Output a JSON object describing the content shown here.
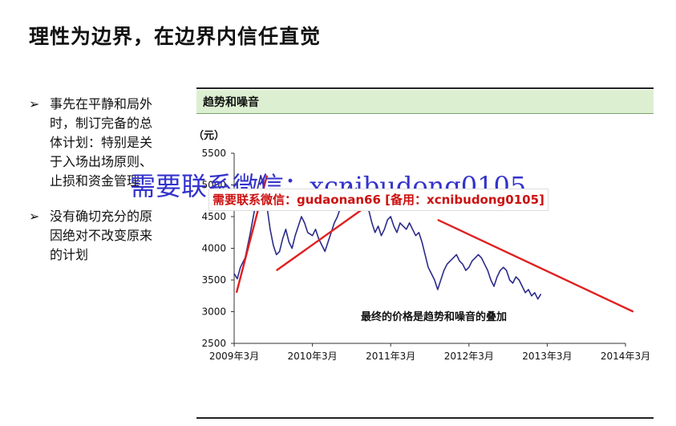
{
  "page": {
    "title": "理性为边界，在边界内信任直觉",
    "bullets": [
      {
        "marker": "➢",
        "text": "事先在平静和局外时，制订完备的总体计划：特别是关于入场出场原则、止损和资金管理"
      },
      {
        "marker": "➢",
        "text": "没有确切充分的原因绝对不改变原来的计划"
      }
    ],
    "panel_title": "趋势和噪音"
  },
  "overlay": {
    "big_text": "需要联系微信：xcnibudong0105",
    "red_text": "需要联系微信：gudaonan66 [备用：xcnibudong0105]"
  },
  "colors": {
    "price_line": "#2b2b8c",
    "trend_line": "#e02020",
    "header_bg": "#dcefd1"
  },
  "chart_data": {
    "type": "line",
    "unit_label": "（元）",
    "annotation": "最终的价格是趋势和噪音的叠加",
    "categories": [
      "2009年3月",
      "2010年3月",
      "2011年3月",
      "2012年3月",
      "2013年3月",
      "2014年3月"
    ],
    "ylim": [
      2500,
      5500
    ],
    "yticks": [
      2500,
      3000,
      3500,
      4000,
      4500,
      5000,
      5500
    ],
    "grid": false,
    "series": [
      {
        "values": [
          [
            0.0,
            3600
          ],
          [
            0.04,
            3520
          ],
          [
            0.08,
            3700
          ],
          [
            0.14,
            3850
          ],
          [
            0.2,
            4200
          ],
          [
            0.26,
            4600
          ],
          [
            0.3,
            4950
          ],
          [
            0.34,
            5150
          ],
          [
            0.38,
            4950
          ],
          [
            0.42,
            4650
          ],
          [
            0.46,
            4300
          ],
          [
            0.5,
            4050
          ],
          [
            0.54,
            3900
          ],
          [
            0.58,
            3950
          ],
          [
            0.62,
            4150
          ],
          [
            0.66,
            4300
          ],
          [
            0.7,
            4100
          ],
          [
            0.74,
            4000
          ],
          [
            0.78,
            4200
          ],
          [
            0.82,
            4350
          ],
          [
            0.86,
            4500
          ],
          [
            0.9,
            4400
          ],
          [
            0.94,
            4250
          ],
          [
            1.0,
            4200
          ],
          [
            1.04,
            4300
          ],
          [
            1.08,
            4150
          ],
          [
            1.12,
            4050
          ],
          [
            1.16,
            3950
          ],
          [
            1.2,
            4100
          ],
          [
            1.24,
            4250
          ],
          [
            1.28,
            4400
          ],
          [
            1.32,
            4500
          ],
          [
            1.36,
            4650
          ],
          [
            1.4,
            4750
          ],
          [
            1.44,
            4900
          ],
          [
            1.48,
            5000
          ],
          [
            1.52,
            4850
          ],
          [
            1.56,
            4950
          ],
          [
            1.6,
            4800
          ],
          [
            1.64,
            4700
          ],
          [
            1.68,
            4850
          ],
          [
            1.72,
            4600
          ],
          [
            1.76,
            4400
          ],
          [
            1.8,
            4250
          ],
          [
            1.84,
            4350
          ],
          [
            1.88,
            4200
          ],
          [
            1.92,
            4300
          ],
          [
            1.96,
            4450
          ],
          [
            2.0,
            4500
          ],
          [
            2.04,
            4350
          ],
          [
            2.08,
            4250
          ],
          [
            2.12,
            4400
          ],
          [
            2.16,
            4350
          ],
          [
            2.2,
            4300
          ],
          [
            2.24,
            4400
          ],
          [
            2.28,
            4300
          ],
          [
            2.32,
            4200
          ],
          [
            2.36,
            4250
          ],
          [
            2.4,
            4100
          ],
          [
            2.44,
            3900
          ],
          [
            2.48,
            3700
          ],
          [
            2.52,
            3600
          ],
          [
            2.56,
            3500
          ],
          [
            2.6,
            3350
          ],
          [
            2.64,
            3500
          ],
          [
            2.68,
            3650
          ],
          [
            2.72,
            3750
          ],
          [
            2.76,
            3800
          ],
          [
            2.8,
            3850
          ],
          [
            2.84,
            3900
          ],
          [
            2.88,
            3800
          ],
          [
            2.92,
            3750
          ],
          [
            2.96,
            3650
          ],
          [
            3.0,
            3700
          ],
          [
            3.04,
            3800
          ],
          [
            3.08,
            3850
          ],
          [
            3.12,
            3900
          ],
          [
            3.16,
            3850
          ],
          [
            3.2,
            3750
          ],
          [
            3.24,
            3650
          ],
          [
            3.28,
            3500
          ],
          [
            3.32,
            3400
          ],
          [
            3.36,
            3550
          ],
          [
            3.4,
            3650
          ],
          [
            3.44,
            3700
          ],
          [
            3.48,
            3650
          ],
          [
            3.52,
            3500
          ],
          [
            3.56,
            3450
          ],
          [
            3.6,
            3550
          ],
          [
            3.64,
            3500
          ],
          [
            3.68,
            3400
          ],
          [
            3.72,
            3300
          ],
          [
            3.76,
            3350
          ],
          [
            3.8,
            3250
          ],
          [
            3.84,
            3300
          ],
          [
            3.88,
            3200
          ],
          [
            3.92,
            3280
          ]
        ]
      }
    ],
    "trend_lines": [
      {
        "from": [
          0.03,
          3300
        ],
        "to": [
          0.42,
          5150
        ]
      },
      {
        "from": [
          0.54,
          3650
        ],
        "to": [
          1.62,
          4600
        ]
      },
      {
        "from": [
          2.6,
          4450
        ],
        "to": [
          5.1,
          3000
        ]
      }
    ]
  }
}
